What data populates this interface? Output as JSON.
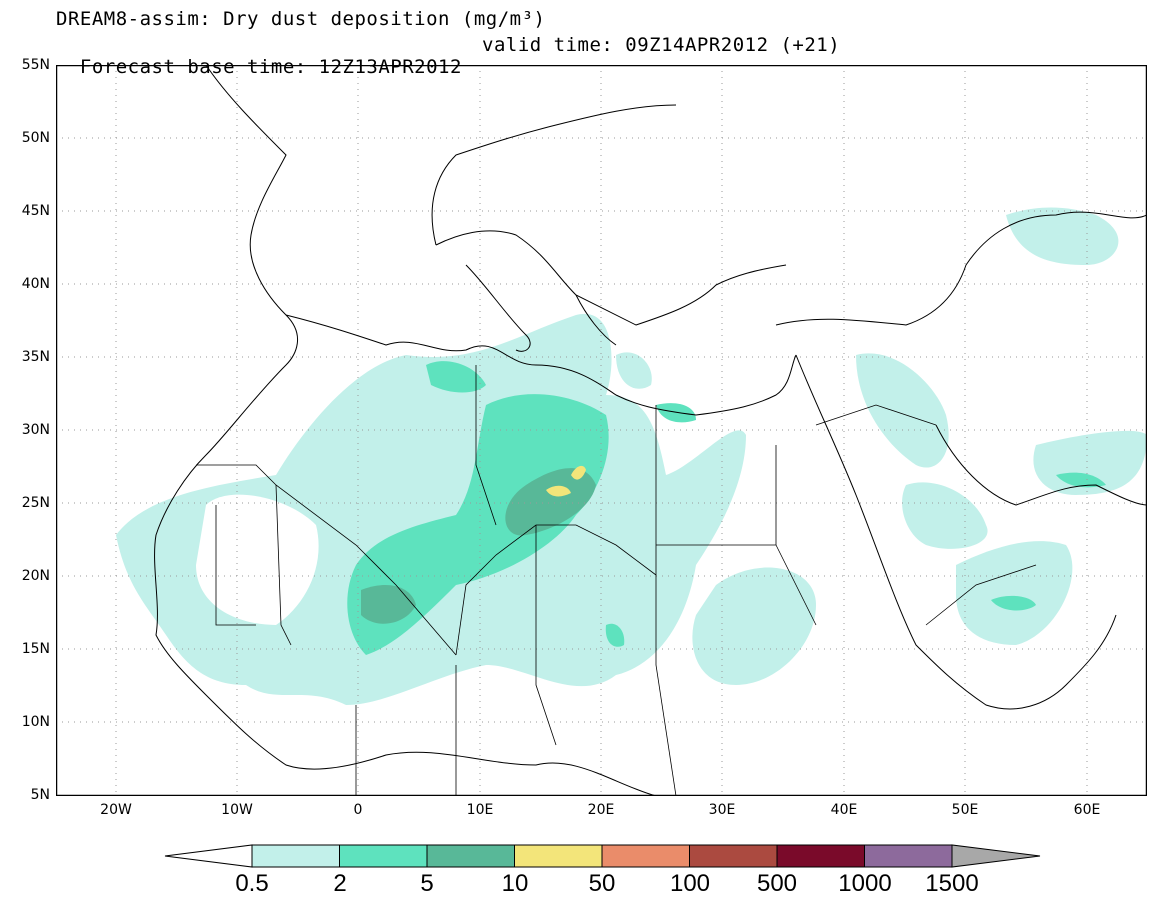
{
  "title_line1": "DREAM8-assim: Dry dust deposition (mg/m³)",
  "title_line2_left": "Forecast base time: 12Z13APR2012",
  "title_line2_right": "valid time: 09Z14APR2012 (+21)",
  "lat_labels": [
    "55N",
    "50N",
    "45N",
    "40N",
    "35N",
    "30N",
    "25N",
    "20N",
    "15N",
    "10N",
    "5N"
  ],
  "lon_labels": [
    "20W",
    "10W",
    "0",
    "10E",
    "20E",
    "30E",
    "40E",
    "50E",
    "60E"
  ],
  "colorbar": {
    "labels": [
      "0.5",
      "2",
      "5",
      "10",
      "50",
      "100",
      "500",
      "1000",
      "1500"
    ],
    "colors": [
      "#c2f0ea",
      "#5ee2be",
      "#58b898",
      "#f3e57a",
      "#ea8c6a",
      "#ab4a40",
      "#7a0a2a",
      "#8d6a9c",
      "#a8a8a8"
    ],
    "under_color": "#ffffff"
  }
}
